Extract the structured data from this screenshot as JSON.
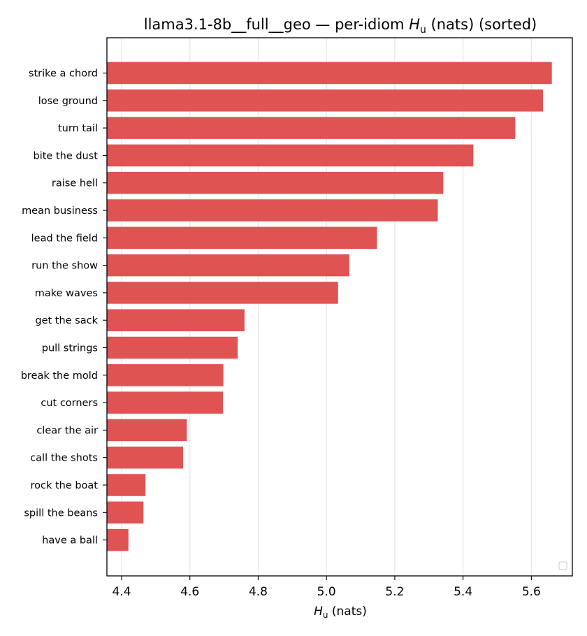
{
  "chart_data": {
    "type": "bar",
    "orientation": "horizontal",
    "title_main": "llama3.1-8b__full__geo — per-idiom ",
    "title_symbol": "H",
    "title_subscript": "u",
    "title_rest": " (nats) (sorted)",
    "xlabel_symbol": "H",
    "xlabel_subscript": "u",
    "xlabel_rest": " (nats)",
    "ylabel": "",
    "xlim": [
      4.357,
      5.72
    ],
    "xticks": [
      "4.4",
      "4.6",
      "4.8",
      "5.0",
      "5.2",
      "5.4",
      "5.6"
    ],
    "grid": "vertical",
    "legend": "lower-right (empty)",
    "bar_color": "#e05353",
    "categories": [
      "strike a chord",
      "lose ground",
      "turn tail",
      "bite the dust",
      "raise hell",
      "mean business",
      "lead the field",
      "run the show",
      "make waves",
      "get the sack",
      "pull strings",
      "break the mold",
      "cut corners",
      "clear the air",
      "call the shots",
      "rock the boat",
      "spill the beans",
      "have a ball"
    ],
    "values": [
      5.66,
      5.634,
      5.553,
      5.43,
      5.342,
      5.326,
      5.148,
      5.067,
      5.034,
      4.76,
      4.74,
      4.698,
      4.697,
      4.591,
      4.58,
      4.47,
      4.464,
      4.42
    ]
  }
}
